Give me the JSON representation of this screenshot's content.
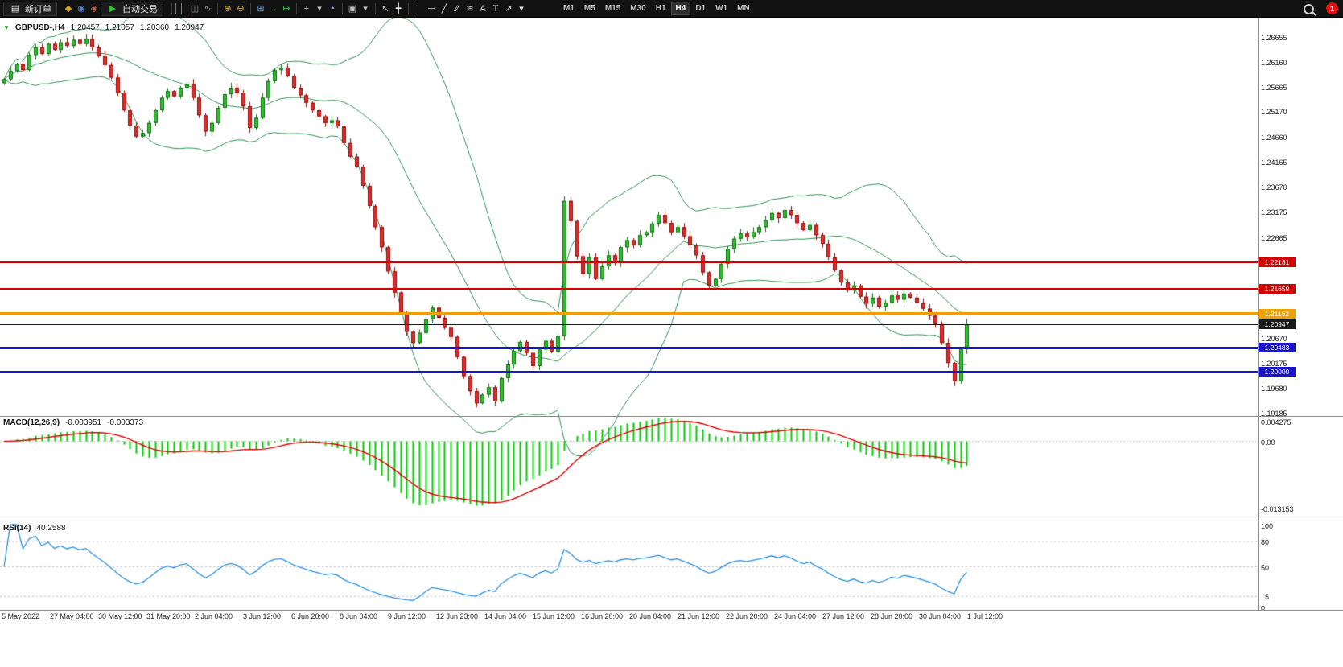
{
  "toolbar": {
    "new_order": {
      "label": "新订单",
      "icon": {
        "name": "new-order-icon",
        "glyph": "▤",
        "color": "#e8e8e8"
      }
    },
    "left_icons": [
      {
        "name": "accounts-icon",
        "glyph": "◆",
        "color": "#d9a727"
      },
      {
        "name": "market-watch-icon",
        "glyph": "◉",
        "color": "#5588cc"
      },
      {
        "name": "alerts-icon",
        "glyph": "◈",
        "color": "#cc6655"
      }
    ],
    "autotrade": {
      "label": "自动交易",
      "icon": {
        "name": "autotrade-icon",
        "glyph": "▶",
        "color": "#2fbf2f"
      }
    },
    "main_icons": [
      {
        "sep": true
      },
      {
        "name": "bar-chart-icon",
        "glyph": "│││",
        "color": "#9a9a9a"
      },
      {
        "name": "candlestick-chart-icon",
        "glyph": "◫",
        "color": "#9a9a9a"
      },
      {
        "name": "line-chart-icon",
        "glyph": "∿",
        "color": "#9a9a9a"
      },
      {
        "sep": true
      },
      {
        "name": "zoom-in-icon",
        "glyph": "⊕",
        "color": "#d9b84a"
      },
      {
        "name": "zoom-out-icon",
        "glyph": "⊖",
        "color": "#d9b84a"
      },
      {
        "sep": true
      },
      {
        "name": "tile-windows-icon",
        "glyph": "⊞",
        "color": "#6f9fd8"
      },
      {
        "name": "auto-scroll-icon",
        "glyph": "→",
        "color": "#3fae3f"
      },
      {
        "name": "chart-shift-icon",
        "glyph": "↦",
        "color": "#3fae3f"
      },
      {
        "sep": true
      },
      {
        "name": "new-chart-icon",
        "glyph": "+",
        "color": "#bdbdbd"
      },
      {
        "name": "new-chart-dropdown-icon",
        "glyph": "▾",
        "color": "#bdbdbd"
      },
      {
        "name": "profiles-icon",
        "glyph": "◔",
        "color": "#6f9fd8"
      },
      {
        "sep": true
      },
      {
        "name": "templates-icon",
        "glyph": "▣",
        "color": "#bdbdbd"
      },
      {
        "name": "templates-dropdown-icon",
        "glyph": "▾",
        "color": "#bdbdbd"
      },
      {
        "sep": true
      },
      {
        "name": "cursor-icon",
        "glyph": "↖",
        "color": "#d8d8d8"
      },
      {
        "name": "crosshair-icon",
        "glyph": "╋",
        "color": "#d8d8d8"
      },
      {
        "sep": true
      },
      {
        "name": "vertical-line-icon",
        "glyph": "│",
        "color": "#d8d8d8"
      },
      {
        "name": "horizontal-line-icon",
        "glyph": "─",
        "color": "#d8d8d8"
      },
      {
        "name": "trendline-icon",
        "glyph": "╱",
        "color": "#d8d8d8"
      },
      {
        "name": "channel-icon",
        "glyph": "∕∕",
        "color": "#d8d8d8"
      },
      {
        "name": "fibonacci-icon",
        "glyph": "≋",
        "color": "#d8d8d8"
      },
      {
        "name": "text-icon",
        "glyph": "A",
        "color": "#d8d8d8"
      },
      {
        "name": "label-icon",
        "glyph": "T",
        "color": "#d8d8d8"
      },
      {
        "name": "arrows-icon",
        "glyph": "↗",
        "color": "#d8d8d8"
      },
      {
        "name": "shapes-dropdown-icon",
        "glyph": "▾",
        "color": "#d8d8d8"
      }
    ],
    "timeframes": [
      "M1",
      "M5",
      "M15",
      "M30",
      "H1",
      "H4",
      "D1",
      "W1",
      "MN"
    ],
    "active_timeframe": "H4",
    "notification_count": "1"
  },
  "symbol_header": {
    "marker_glyph": "▼",
    "title": "GBPUSD-,H4",
    "open": "1.20457",
    "high": "1.21057",
    "low": "1.20360",
    "close": "1.20947"
  },
  "price_axis": {
    "ticks": [
      "1.26655",
      "1.26160",
      "1.25665",
      "1.25170",
      "1.24660",
      "1.24165",
      "1.23670",
      "1.23175",
      "1.22665",
      "1.20670",
      "1.20175",
      "1.19680",
      "1.19185"
    ],
    "badges": [
      {
        "value": "1.22181",
        "color": "#d40000"
      },
      {
        "value": "1.21659",
        "color": "#d40000"
      },
      {
        "value": "1.21162",
        "color": "#f0a000"
      },
      {
        "value": "1.20947",
        "color": "#1a1a1a"
      },
      {
        "value": "1.20483",
        "color": "#1a14cc"
      },
      {
        "value": "1.20000",
        "color": "#1a14cc"
      }
    ]
  },
  "price_lines": [
    {
      "price": 1.22181,
      "color": "#d40000",
      "width": 2
    },
    {
      "price": 1.21659,
      "color": "#d40000",
      "width": 2
    },
    {
      "price": 1.21162,
      "color": "#f0a000",
      "width": 3
    },
    {
      "price": 1.20947,
      "color": "#1a1a1a",
      "width": 1
    },
    {
      "price": 1.20483,
      "color": "#1a14cc",
      "width": 3
    },
    {
      "price": 1.2,
      "color": "#1a14cc",
      "width": 3
    }
  ],
  "macd": {
    "label": "MACD(12,26,9)",
    "value1": "-0.003951",
    "value2": "-0.003373",
    "axis": [
      "0.004275",
      "0.00",
      "-0.013153"
    ]
  },
  "rsi": {
    "label": "RSI(14)",
    "value": "40.2588",
    "axis": [
      "100",
      "80",
      "50",
      "15",
      "0"
    ],
    "levels": [
      80,
      50,
      15
    ]
  },
  "time_axis": [
    "5 May 2022",
    "27 May 04:00",
    "30 May 12:00",
    "31 May 20:00",
    "2 Jun 04:00",
    "3 Jun 12:00",
    "6 Jun 20:00",
    "8 Jun 04:00",
    "9 Jun 12:00",
    "12 Jun 23:00",
    "14 Jun 04:00",
    "15 Jun 12:00",
    "16 Jun 20:00",
    "20 Jun 04:00",
    "21 Jun 12:00",
    "22 Jun 20:00",
    "24 Jun 04:00",
    "27 Jun 12:00",
    "28 Jun 20:00",
    "30 Jun 04:00",
    "1 Jul 12:00"
  ],
  "chart_data": {
    "type": "candlestick",
    "symbol": "GBPUSD",
    "timeframe": "H4",
    "indicators": [
      "Bollinger Bands(20,2)",
      "MACD(12,26,9)",
      "RSI(14)"
    ],
    "price_range": [
      1.1916,
      1.2696
    ],
    "closes": [
      1.2582,
      1.2598,
      1.2612,
      1.26,
      1.263,
      1.2645,
      1.2632,
      1.2652,
      1.264,
      1.2655,
      1.2648,
      1.266,
      1.2652,
      1.2662,
      1.2645,
      1.2628,
      1.261,
      1.2585,
      1.2555,
      1.252,
      1.249,
      1.2468,
      1.2475,
      1.2495,
      1.252,
      1.2545,
      1.2558,
      1.2548,
      1.2565,
      1.2572,
      1.2545,
      1.251,
      1.2478,
      1.2495,
      1.2525,
      1.2552,
      1.2565,
      1.2555,
      1.2528,
      1.2485,
      1.2505,
      1.2545,
      1.2578,
      1.26,
      1.2605,
      1.2588,
      1.2565,
      1.255,
      1.2535,
      1.252,
      1.2508,
      1.2495,
      1.25,
      1.2488,
      1.2455,
      1.2428,
      1.2408,
      1.237,
      1.233,
      1.2288,
      1.2248,
      1.22,
      1.2158,
      1.2118,
      1.208,
      1.2058,
      1.2078,
      1.2105,
      1.2128,
      1.2108,
      1.2088,
      1.207,
      1.203,
      1.1992,
      1.1962,
      1.1938,
      1.1955,
      1.197,
      1.1942,
      1.1988,
      1.2015,
      1.2042,
      1.206,
      1.2038,
      1.2012,
      1.2045,
      1.2062,
      1.204,
      1.2072,
      1.234,
      1.23,
      1.223,
      1.2195,
      1.2228,
      1.2185,
      1.221,
      1.2232,
      1.2218,
      1.2248,
      1.2262,
      1.2252,
      1.2272,
      1.2278,
      1.2295,
      1.2312,
      1.2296,
      1.2278,
      1.2288,
      1.227,
      1.2252,
      1.2232,
      1.2198,
      1.2172,
      1.2185,
      1.2215,
      1.2245,
      1.2265,
      1.2275,
      1.2268,
      1.2278,
      1.2288,
      1.2302,
      1.2316,
      1.2306,
      1.2322,
      1.2312,
      1.2296,
      1.2282,
      1.2292,
      1.2272,
      1.2255,
      1.2228,
      1.2202,
      1.2178,
      1.2162,
      1.2172,
      1.215,
      1.2136,
      1.2148,
      1.213,
      1.2138,
      1.2152,
      1.2144,
      1.2156,
      1.2148,
      1.2138,
      1.2126,
      1.2112,
      1.2095,
      1.2058,
      1.2018,
      1.1982,
      1.2046,
      1.20947
    ],
    "last_candle": {
      "open": 1.20457,
      "high": 1.21057,
      "low": 1.2036,
      "close": 1.20947
    }
  },
  "colors": {
    "bull": "#2fbf2f",
    "bull_border": "#146e14",
    "bear": "#e22c2c",
    "bear_border": "#8d1010",
    "bollinger": "#2e8f53",
    "macd_hist": "#00cc00",
    "macd_signal": "#dd0000",
    "rsi_line": "#2b8fdd"
  }
}
